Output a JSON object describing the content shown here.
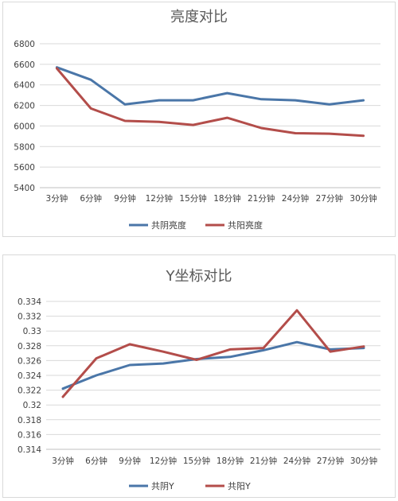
{
  "chart_data": [
    {
      "type": "line",
      "title": "亮度对比",
      "categories": [
        "3分钟",
        "6分钟",
        "9分钟",
        "12分钟",
        "15分钟",
        "18分钟",
        "21分钟",
        "24分钟",
        "27分钟",
        "30分钟"
      ],
      "ylim": [
        5400,
        6800
      ],
      "yticks": [
        "5400",
        "5600",
        "5800",
        "6000",
        "6200",
        "6400",
        "6600",
        "6800"
      ],
      "grid": true,
      "legend_position": "bottom",
      "series": [
        {
          "name": "共阴亮度",
          "color": "#4a76a8",
          "values": [
            6570,
            6450,
            6210,
            6250,
            6250,
            6320,
            6260,
            6250,
            6210,
            6250
          ]
        },
        {
          "name": "共阳亮度",
          "color": "#b34d4a",
          "values": [
            6560,
            6170,
            6050,
            6040,
            6010,
            6080,
            5980,
            5930,
            5925,
            5905
          ]
        }
      ]
    },
    {
      "type": "line",
      "title": "Y坐标对比",
      "categories": [
        "3分钟",
        "6分钟",
        "9分钟",
        "12分钟",
        "15分钟",
        "18分钟",
        "21分钟",
        "24分钟",
        "27分钟",
        "30分钟"
      ],
      "ylim": [
        0.314,
        0.334
      ],
      "yticks": [
        "0.314",
        "0.316",
        "0.318",
        "0.32",
        "0.322",
        "0.324",
        "0.326",
        "0.328",
        "0.33",
        "0.332",
        "0.334"
      ],
      "grid": true,
      "legend_position": "bottom",
      "series": [
        {
          "name": "共阴Y",
          "color": "#4a76a8",
          "values": [
            0.3222,
            0.324,
            0.3254,
            0.3256,
            0.3262,
            0.3265,
            0.3274,
            0.3285,
            0.3275,
            0.3277
          ]
        },
        {
          "name": "共阳Y",
          "color": "#b34d4a",
          "values": [
            0.3211,
            0.3263,
            0.3282,
            0.3272,
            0.3261,
            0.3275,
            0.3277,
            0.3328,
            0.3272,
            0.3279
          ]
        }
      ]
    }
  ]
}
